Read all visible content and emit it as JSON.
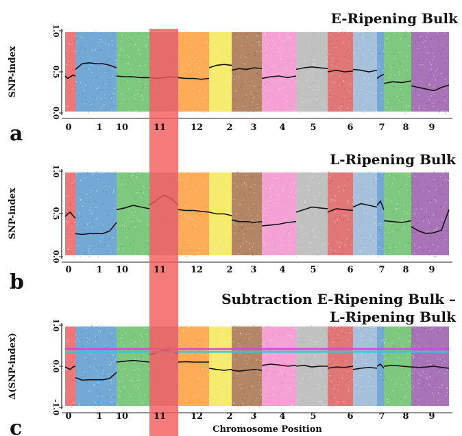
{
  "chart_data": [
    {
      "type": "scatter",
      "panel_label": "a",
      "title": "E-Ripening Bulk",
      "title2": "",
      "ylabel": "SNP-index",
      "xlabel": "",
      "ylim": [
        0,
        1
      ],
      "yticks": [
        "0.0",
        "0.5",
        "1.0"
      ],
      "highlight": [
        "11"
      ],
      "chromosomes": [
        {
          "label": "0",
          "color": "#e53030",
          "mean": 0.45,
          "pts": [
            0.45,
            0.42,
            0.44,
            0.46,
            0.45
          ]
        },
        {
          "label": "1",
          "color": "#2b7bbf",
          "mean": 0.6,
          "pts": [
            0.53,
            0.6,
            0.61,
            0.6,
            0.6,
            0.58,
            0.55
          ]
        },
        {
          "label": "10",
          "color": "#3aaa3a",
          "mean": 0.44,
          "pts": [
            0.45,
            0.44,
            0.44,
            0.43,
            0.43
          ]
        },
        {
          "label": "11",
          "color": "#8a8a8a",
          "mean": 0.43,
          "pts": [
            0.43,
            0.42,
            0.43,
            0.44,
            0.43
          ]
        },
        {
          "label": "12",
          "color": "#ff8000",
          "mean": 0.42,
          "pts": [
            0.43,
            0.42,
            0.42,
            0.41,
            0.42
          ]
        },
        {
          "label": "2",
          "color": "#f0e020",
          "mean": 0.58,
          "pts": [
            0.55,
            0.58,
            0.59,
            0.58
          ]
        },
        {
          "label": "3",
          "color": "#8b4513",
          "mean": 0.53,
          "pts": [
            0.52,
            0.54,
            0.53,
            0.55,
            0.54
          ]
        },
        {
          "label": "4",
          "color": "#ee6ec0",
          "mean": 0.45,
          "pts": [
            0.42,
            0.44,
            0.45,
            0.43,
            0.45
          ]
        },
        {
          "label": "5",
          "color": "#a0a0a0",
          "mean": 0.55,
          "pts": [
            0.53,
            0.55,
            0.56,
            0.55,
            0.54
          ]
        },
        {
          "label": "6",
          "color": "#d03030",
          "mean": 0.5,
          "pts": [
            0.5,
            0.52,
            0.5,
            0.51
          ]
        },
        {
          "label": "",
          "color": "#7aa0c8",
          "mean": 0.52,
          "pts": [
            0.53,
            0.52,
            0.5,
            0.52
          ]
        },
        {
          "label": "7",
          "color": "#2b7bbf",
          "mean": 0.45,
          "pts": [
            0.42,
            0.45,
            0.47
          ]
        },
        {
          "label": "8",
          "color": "#3aaa3a",
          "mean": 0.38,
          "pts": [
            0.36,
            0.38,
            0.37,
            0.39
          ]
        },
        {
          "label": "9",
          "color": "#7a2a90",
          "mean": 0.3,
          "pts": [
            0.33,
            0.31,
            0.29,
            0.27,
            0.31,
            0.34
          ]
        }
      ]
    },
    {
      "type": "scatter",
      "panel_label": "b",
      "title": "L-Ripening Bulk",
      "title2": "",
      "ylabel": "SNP-index",
      "xlabel": "",
      "ylim": [
        0,
        1
      ],
      "yticks": [
        "0.0",
        "0.5",
        "1.0"
      ],
      "highlight": [
        "11"
      ],
      "chromosomes": [
        {
          "label": "0",
          "color": "#e53030",
          "mean": 0.5,
          "pts": [
            0.47,
            0.5,
            0.52,
            0.48,
            0.45
          ]
        },
        {
          "label": "1",
          "color": "#2b7bbf",
          "mean": 0.27,
          "pts": [
            0.27,
            0.26,
            0.27,
            0.27,
            0.27,
            0.3,
            0.4
          ]
        },
        {
          "label": "10",
          "color": "#3aaa3a",
          "mean": 0.57,
          "pts": [
            0.55,
            0.57,
            0.6,
            0.58,
            0.56
          ]
        },
        {
          "label": "11",
          "color": "#8a8a8a",
          "mean": 0.66,
          "pts": [
            0.6,
            0.66,
            0.72,
            0.68,
            0.6
          ]
        },
        {
          "label": "12",
          "color": "#ff8000",
          "mean": 0.54,
          "pts": [
            0.55,
            0.54,
            0.54,
            0.53,
            0.52
          ]
        },
        {
          "label": "2",
          "color": "#f0e020",
          "mean": 0.5,
          "pts": [
            0.52,
            0.5,
            0.5,
            0.48
          ]
        },
        {
          "label": "3",
          "color": "#8b4513",
          "mean": 0.41,
          "pts": [
            0.43,
            0.41,
            0.41,
            0.4,
            0.41
          ]
        },
        {
          "label": "4",
          "color": "#ee6ec0",
          "mean": 0.38,
          "pts": [
            0.36,
            0.37,
            0.38,
            0.4,
            0.41
          ]
        },
        {
          "label": "5",
          "color": "#a0a0a0",
          "mean": 0.55,
          "pts": [
            0.52,
            0.55,
            0.58,
            0.57,
            0.56
          ]
        },
        {
          "label": "6",
          "color": "#d03030",
          "mean": 0.55,
          "pts": [
            0.52,
            0.56,
            0.55,
            0.54
          ]
        },
        {
          "label": "",
          "color": "#7aa0c8",
          "mean": 0.6,
          "pts": [
            0.58,
            0.62,
            0.6,
            0.58
          ]
        },
        {
          "label": "7",
          "color": "#2b7bbf",
          "mean": 0.62,
          "pts": [
            0.6,
            0.65,
            0.55
          ]
        },
        {
          "label": "8",
          "color": "#3aaa3a",
          "mean": 0.41,
          "pts": [
            0.42,
            0.41,
            0.4,
            0.42
          ]
        },
        {
          "label": "9",
          "color": "#7a2a90",
          "mean": 0.3,
          "pts": [
            0.35,
            0.3,
            0.27,
            0.28,
            0.31,
            0.55
          ]
        }
      ]
    },
    {
      "type": "scatter",
      "panel_label": "c",
      "title": "Subtraction  E-Ripening Bulk –",
      "title2": "L-Ripening Bulk",
      "ylabel": "Δ(SNP-index)",
      "xlabel": "Chromosome Position",
      "ylim": [
        -1,
        1
      ],
      "yticks": [
        "-1.0",
        "0.0",
        "1.0"
      ],
      "highlight": [
        "11"
      ],
      "threshold_99": 0.42,
      "threshold_95": 0.35,
      "chromosomes": [
        {
          "label": "0",
          "color": "#e53030",
          "mean": -0.03,
          "pts": [
            -0.02,
            -0.05,
            -0.08,
            -0.02,
            0.0
          ]
        },
        {
          "label": "1",
          "color": "#2b7bbf",
          "mean": -0.33,
          "pts": [
            -0.28,
            -0.34,
            -0.33,
            -0.33,
            -0.33,
            -0.3,
            -0.15
          ]
        },
        {
          "label": "10",
          "color": "#3aaa3a",
          "mean": 0.12,
          "pts": [
            0.1,
            0.12,
            0.14,
            0.12,
            0.1
          ]
        },
        {
          "label": "11",
          "color": "#8a8a8a",
          "mean": 0.35,
          "pts": [
            0.28,
            0.33,
            0.4,
            0.36,
            0.3
          ]
        },
        {
          "label": "12",
          "color": "#ff8000",
          "mean": 0.1,
          "pts": [
            0.1,
            0.11,
            0.1,
            0.1,
            0.1
          ]
        },
        {
          "label": "2",
          "color": "#f0e020",
          "mean": -0.08,
          "pts": [
            -0.05,
            -0.08,
            -0.1,
            -0.08
          ]
        },
        {
          "label": "3",
          "color": "#8b4513",
          "mean": -0.1,
          "pts": [
            -0.1,
            -0.12,
            -0.1,
            -0.08,
            -0.1
          ]
        },
        {
          "label": "4",
          "color": "#ee6ec0",
          "mean": 0.03,
          "pts": [
            0.02,
            0.05,
            0.03,
            0.0,
            0.02
          ]
        },
        {
          "label": "5",
          "color": "#a0a0a0",
          "mean": 0.0,
          "pts": [
            0.0,
            0.02,
            -0.02,
            0.0,
            0.0
          ]
        },
        {
          "label": "6",
          "color": "#d03030",
          "mean": -0.03,
          "pts": [
            -0.05,
            -0.02,
            -0.03,
            0.0
          ]
        },
        {
          "label": "",
          "color": "#7aa0c8",
          "mean": -0.05,
          "pts": [
            -0.08,
            -0.05,
            -0.03,
            -0.05
          ]
        },
        {
          "label": "7",
          "color": "#2b7bbf",
          "mean": 0.0,
          "pts": [
            0.0,
            0.05,
            -0.05
          ]
        },
        {
          "label": "8",
          "color": "#3aaa3a",
          "mean": 0.0,
          "pts": [
            0.0,
            0.02,
            0.0,
            -0.02
          ]
        },
        {
          "label": "9",
          "color": "#7a2a90",
          "mean": -0.02,
          "pts": [
            -0.02,
            -0.03,
            -0.02,
            0.0,
            -0.03,
            -0.05
          ]
        }
      ]
    }
  ],
  "colors": {
    "highlight_band": "#f25a5a",
    "threshold_99": "#e040e0",
    "threshold_95": "#30c8e0",
    "mean_line": "#111111"
  }
}
